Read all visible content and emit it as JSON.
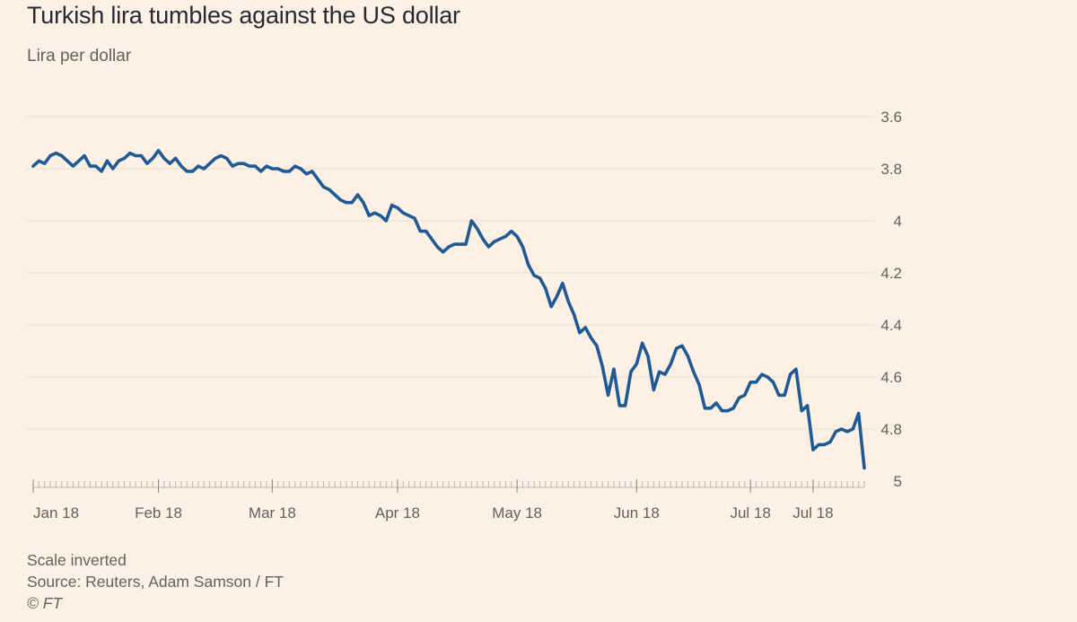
{
  "chart_data": {
    "type": "line",
    "title": "Turkish lira tumbles against the US dollar",
    "subtitle": "Lira per dollar",
    "ylabel": "Lira per dollar",
    "xlabel": "",
    "y_inverted": true,
    "ylim": [
      3.6,
      5.0
    ],
    "y_ticks": [
      3.6,
      3.8,
      4,
      4.2,
      4.4,
      4.6,
      4.8,
      5
    ],
    "y_tick_labels": [
      "3.6",
      "3.8",
      "4",
      "4.2",
      "4.4",
      "4.6",
      "4.8",
      "5"
    ],
    "x_tick_labels": [
      {
        "label": "Jan 18",
        "index": 0
      },
      {
        "label": "Feb 18",
        "index": 22
      },
      {
        "label": "Mar 18",
        "index": 42
      },
      {
        "label": "Apr 18",
        "index": 64
      },
      {
        "label": "May 18",
        "index": 85
      },
      {
        "label": "Jun 18",
        "index": 106
      },
      {
        "label": "Jul 18",
        "index": 126
      },
      {
        "label": "Jul 18",
        "index": 137
      }
    ],
    "series": [
      {
        "name": "Lira per dollar",
        "color": "#1f5a96",
        "values": [
          3.79,
          3.77,
          3.78,
          3.75,
          3.74,
          3.75,
          3.77,
          3.79,
          3.77,
          3.75,
          3.79,
          3.79,
          3.81,
          3.77,
          3.8,
          3.77,
          3.76,
          3.74,
          3.75,
          3.75,
          3.78,
          3.76,
          3.73,
          3.76,
          3.78,
          3.76,
          3.79,
          3.81,
          3.81,
          3.79,
          3.8,
          3.78,
          3.76,
          3.75,
          3.76,
          3.79,
          3.78,
          3.78,
          3.79,
          3.79,
          3.81,
          3.79,
          3.8,
          3.8,
          3.81,
          3.81,
          3.79,
          3.8,
          3.82,
          3.81,
          3.84,
          3.87,
          3.88,
          3.9,
          3.92,
          3.93,
          3.93,
          3.9,
          3.93,
          3.98,
          3.97,
          3.98,
          4.0,
          3.94,
          3.95,
          3.97,
          3.98,
          3.99,
          4.04,
          4.04,
          4.07,
          4.1,
          4.12,
          4.1,
          4.09,
          4.09,
          4.09,
          4.0,
          4.03,
          4.07,
          4.1,
          4.08,
          4.07,
          4.06,
          4.04,
          4.06,
          4.1,
          4.17,
          4.21,
          4.22,
          4.26,
          4.33,
          4.29,
          4.24,
          4.31,
          4.36,
          4.43,
          4.41,
          4.45,
          4.48,
          4.56,
          4.67,
          4.57,
          4.71,
          4.71,
          4.58,
          4.55,
          4.47,
          4.52,
          4.65,
          4.58,
          4.59,
          4.55,
          4.49,
          4.48,
          4.52,
          4.58,
          4.63,
          4.72,
          4.72,
          4.7,
          4.73,
          4.73,
          4.72,
          4.68,
          4.67,
          4.62,
          4.62,
          4.59,
          4.6,
          4.62,
          4.67,
          4.67,
          4.59,
          4.57,
          4.73,
          4.71,
          4.88,
          4.86,
          4.86,
          4.85,
          4.81,
          4.8,
          4.81,
          4.8,
          4.74,
          4.95
        ]
      }
    ],
    "footnote": "Scale inverted",
    "source": "Source: Reuters, Adam Samson / FT",
    "copyright": "© FT"
  }
}
